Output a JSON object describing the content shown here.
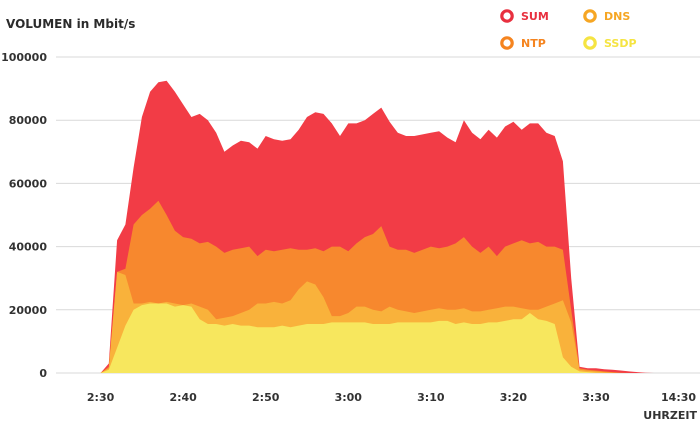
{
  "chart_data": {
    "type": "area",
    "stacked": false,
    "title": "",
    "ylabel": "VOLUMEN in Mbit/s",
    "xlabel": "UHRZEIT",
    "ylim": [
      0,
      100000
    ],
    "yticks": [
      "0",
      "20000",
      "40000",
      "60000",
      "80000",
      "100000"
    ],
    "ytick_values": [
      0,
      20000,
      40000,
      60000,
      80000,
      100000
    ],
    "xticks": [
      "2:30",
      "2:40",
      "2:50",
      "3:00",
      "3:10",
      "3:20",
      "3:30",
      "14:30"
    ],
    "xtick_values": [
      150,
      160,
      170,
      180,
      190,
      200,
      210,
      220
    ],
    "grid": true,
    "legend_position": "top-right",
    "series": [
      {
        "name": "SUM",
        "color": "#f23c46",
        "legend_color": "#e8303f",
        "x": [
          150,
          151,
          152,
          153,
          154,
          155,
          156,
          157,
          158,
          159,
          160,
          161,
          162,
          163,
          164,
          165,
          166,
          167,
          168,
          169,
          170,
          171,
          172,
          173,
          174,
          175,
          176,
          177,
          178,
          179,
          180,
          181,
          182,
          183,
          184,
          185,
          186,
          187,
          188,
          189,
          190,
          191,
          192,
          193,
          194,
          195,
          196,
          197,
          198,
          199,
          200,
          201,
          202,
          203,
          204,
          205,
          206,
          207,
          208,
          209,
          210,
          211,
          212,
          213,
          214,
          215,
          216,
          217,
          218,
          219
        ],
        "y": [
          0,
          3000,
          42000,
          47000,
          65000,
          81000,
          89000,
          92000,
          92500,
          89000,
          85000,
          81000,
          82000,
          80000,
          76000,
          70000,
          72000,
          73500,
          73000,
          71000,
          75000,
          74000,
          73500,
          74000,
          77000,
          81000,
          82500,
          82000,
          79000,
          75000,
          79000,
          79000,
          80000,
          82000,
          84000,
          79500,
          76000,
          75000,
          75000,
          75500,
          76000,
          76500,
          74500,
          73000,
          80000,
          76000,
          74000,
          77000,
          74500,
          78000,
          79500,
          77000,
          79000,
          79000,
          76000,
          75000,
          67000,
          30000,
          2000,
          1500,
          1500,
          1200,
          1000,
          800,
          500,
          300,
          100,
          0,
          0,
          0
        ]
      },
      {
        "name": "NTP",
        "color": "#f7882e",
        "legend_color": "#f5841f",
        "x": [
          150,
          151,
          152,
          153,
          154,
          155,
          156,
          157,
          158,
          159,
          160,
          161,
          162,
          163,
          164,
          165,
          166,
          167,
          168,
          169,
          170,
          171,
          172,
          173,
          174,
          175,
          176,
          177,
          178,
          179,
          180,
          181,
          182,
          183,
          184,
          185,
          186,
          187,
          188,
          189,
          190,
          191,
          192,
          193,
          194,
          195,
          196,
          197,
          198,
          199,
          200,
          201,
          202,
          203,
          204,
          205,
          206,
          207,
          208,
          209,
          210,
          211,
          212,
          213,
          214,
          215,
          216,
          217,
          218,
          219
        ],
        "y": [
          0,
          2000,
          32000,
          33000,
          47000,
          50000,
          52000,
          54500,
          50000,
          45000,
          43000,
          42500,
          41000,
          41500,
          40000,
          38000,
          39000,
          39500,
          40000,
          37000,
          39000,
          38500,
          39000,
          39500,
          39000,
          39000,
          39500,
          38500,
          40000,
          40000,
          38500,
          41000,
          43000,
          44000,
          46500,
          40000,
          39000,
          39000,
          38000,
          39000,
          40000,
          39500,
          40000,
          41000,
          43000,
          40000,
          38000,
          40000,
          37000,
          40000,
          41000,
          42000,
          41000,
          41500,
          40000,
          40000,
          39000,
          20000,
          1500,
          1000,
          800,
          500,
          300,
          100,
          0,
          0,
          0,
          0,
          0,
          0
        ]
      },
      {
        "name": "DNS",
        "color": "#f9b23b",
        "legend_color": "#f6a623",
        "x": [
          150,
          151,
          152,
          153,
          154,
          155,
          156,
          157,
          158,
          159,
          160,
          161,
          162,
          163,
          164,
          165,
          166,
          167,
          168,
          169,
          170,
          171,
          172,
          173,
          174,
          175,
          176,
          177,
          178,
          179,
          180,
          181,
          182,
          183,
          184,
          185,
          186,
          187,
          188,
          189,
          190,
          191,
          192,
          193,
          194,
          195,
          196,
          197,
          198,
          199,
          200,
          201,
          202,
          203,
          204,
          205,
          206,
          207,
          208,
          209,
          210,
          211,
          212,
          213,
          214,
          215,
          216,
          217,
          218,
          219
        ],
        "y": [
          0,
          1500,
          32000,
          31000,
          22000,
          22000,
          22500,
          22000,
          22500,
          22000,
          21500,
          22000,
          21000,
          20000,
          17000,
          17500,
          18000,
          19000,
          20000,
          22000,
          22000,
          22500,
          22000,
          23000,
          26500,
          29000,
          28000,
          24000,
          18000,
          18000,
          19000,
          21000,
          21000,
          20000,
          19500,
          21000,
          20000,
          19500,
          19000,
          19500,
          20000,
          20500,
          20000,
          20000,
          20500,
          19500,
          19500,
          20000,
          20500,
          21000,
          21000,
          20500,
          20000,
          20000,
          21000,
          22000,
          23000,
          16000,
          1000,
          700,
          500,
          300,
          100,
          0,
          0,
          0,
          0,
          0,
          0,
          0
        ]
      },
      {
        "name": "SSDP",
        "color": "#f7e75e",
        "legend_color": "#f5e442",
        "x": [
          150,
          151,
          152,
          153,
          154,
          155,
          156,
          157,
          158,
          159,
          160,
          161,
          162,
          163,
          164,
          165,
          166,
          167,
          168,
          169,
          170,
          171,
          172,
          173,
          174,
          175,
          176,
          177,
          178,
          179,
          180,
          181,
          182,
          183,
          184,
          185,
          186,
          187,
          188,
          189,
          190,
          191,
          192,
          193,
          194,
          195,
          196,
          197,
          198,
          199,
          200,
          201,
          202,
          203,
          204,
          205,
          206,
          207,
          208,
          209,
          210,
          211,
          212,
          213,
          214,
          215,
          216,
          217,
          218,
          219
        ],
        "y": [
          0,
          1000,
          8000,
          15000,
          20000,
          21500,
          22000,
          22000,
          22000,
          21000,
          21500,
          21000,
          17000,
          15500,
          15500,
          15000,
          15500,
          15000,
          15000,
          14500,
          14500,
          14500,
          15000,
          14500,
          15000,
          15500,
          15500,
          15500,
          16000,
          16000,
          16000,
          16000,
          16000,
          15500,
          15500,
          15500,
          16000,
          16000,
          16000,
          16000,
          16000,
          16500,
          16500,
          15500,
          16000,
          15500,
          15500,
          16000,
          16000,
          16500,
          17000,
          17000,
          19000,
          17000,
          16500,
          15500,
          5000,
          2000,
          500,
          300,
          100,
          0,
          0,
          0,
          0,
          0,
          0,
          0,
          0,
          0
        ]
      }
    ]
  }
}
